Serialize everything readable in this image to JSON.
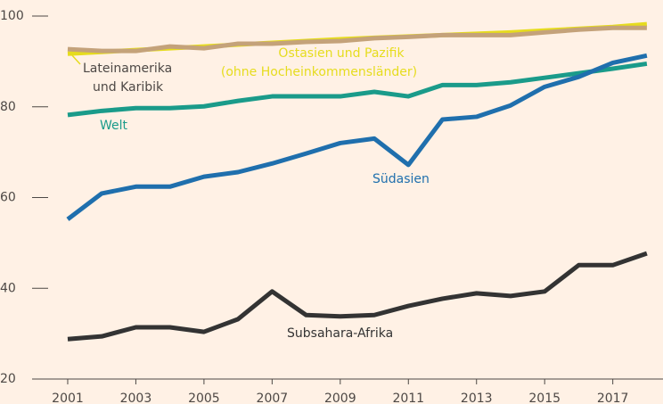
{
  "chart_data": {
    "type": "line",
    "x": [
      2001,
      2002,
      2003,
      2004,
      2005,
      2006,
      2007,
      2008,
      2009,
      2010,
      2011,
      2012,
      2013,
      2014,
      2015,
      2016,
      2017,
      2018
    ],
    "series": [
      {
        "name": "Lateinamerika und Karibik",
        "color": "#e6dc1e",
        "values": [
          91.7,
          92.1,
          92.5,
          92.9,
          93.3,
          93.7,
          94.1,
          94.5,
          94.9,
          95.2,
          95.5,
          95.8,
          96.1,
          96.4,
          96.8,
          97.2,
          97.6,
          98.2
        ]
      },
      {
        "name": "Ostasien und Pazifik (ohne Hocheinkommensländer)",
        "color": "#c4a27a",
        "values": [
          92.7,
          92.3,
          92.3,
          93.3,
          92.9,
          93.9,
          93.9,
          94.3,
          94.5,
          95.1,
          95.4,
          95.8,
          95.8,
          95.8,
          96.4,
          97.0,
          97.4,
          97.4
        ]
      },
      {
        "name": "Welt",
        "color": "#1a9b8a",
        "values": [
          78.2,
          79.1,
          79.7,
          79.7,
          80.1,
          81.3,
          82.3,
          82.3,
          82.3,
          83.3,
          82.3,
          84.8,
          84.8,
          85.4,
          86.4,
          87.4,
          88.4,
          89.5
        ]
      },
      {
        "name": "Südasien",
        "color": "#1f6fad",
        "values": [
          55.2,
          60.9,
          62.4,
          62.4,
          64.6,
          65.6,
          67.5,
          69.7,
          72.0,
          73.0,
          67.2,
          77.2,
          77.8,
          80.3,
          84.4,
          86.6,
          89.7,
          91.3
        ]
      },
      {
        "name": "Subsahara-Afrika",
        "color": "#333333",
        "values": [
          28.8,
          29.4,
          31.4,
          31.4,
          30.4,
          33.2,
          39.3,
          34.1,
          33.8,
          34.1,
          36.1,
          37.7,
          38.9,
          38.3,
          39.3,
          45.1,
          45.1,
          47.7
        ]
      }
    ],
    "annotations": [
      "Lateinamerika",
      "und Karibik",
      "Ostasien und Pazifik",
      "(ohne Hocheinkommensländer)",
      "Welt",
      "Südasien",
      "Subsahara-Afrika"
    ],
    "xlim": [
      2000,
      2018.5
    ],
    "xticks": [
      2001,
      2003,
      2005,
      2007,
      2009,
      2011,
      2013,
      2015,
      2017
    ],
    "ylim": [
      20,
      100
    ],
    "yticks": [
      20,
      40,
      60,
      80,
      100
    ]
  }
}
